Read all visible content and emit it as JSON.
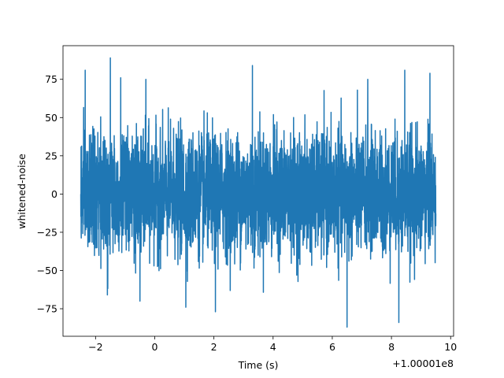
{
  "chart_data": {
    "type": "line",
    "xlabel": "Time (s)",
    "ylabel": "whitened-noise",
    "x_offset_label": "+1.00001e8",
    "xlim": [
      -3.1,
      10.1
    ],
    "ylim": [
      -93,
      97
    ],
    "x_ticks": [
      -2,
      0,
      2,
      4,
      6,
      8,
      10
    ],
    "y_ticks": [
      -75,
      -50,
      -25,
      0,
      25,
      50,
      75
    ],
    "x_tick_labels": [
      "−2",
      "0",
      "2",
      "4",
      "6",
      "8",
      "10"
    ],
    "y_tick_labels": [
      "−75",
      "−50",
      "−25",
      "0",
      "25",
      "50",
      "75"
    ],
    "grid": false,
    "series": [
      {
        "color": "#1f77b4",
        "x_range": [
          -2.5,
          9.5
        ],
        "typical_envelope": [
          -40,
          45
        ],
        "peaks": [
          {
            "x": -2.35,
            "y": 81
          },
          {
            "x": -1.5,
            "y": 89
          },
          {
            "x": -1.15,
            "y": 76
          },
          {
            "x": -0.3,
            "y": 75
          },
          {
            "x": 3.3,
            "y": 84
          },
          {
            "x": 7.2,
            "y": 75
          },
          {
            "x": 8.45,
            "y": 81
          },
          {
            "x": 9.3,
            "y": 79
          },
          {
            "x": -1.6,
            "y": -66
          },
          {
            "x": -0.5,
            "y": -70
          },
          {
            "x": 1.05,
            "y": -74
          },
          {
            "x": 2.05,
            "y": -77
          },
          {
            "x": 6.5,
            "y": -87
          },
          {
            "x": 8.25,
            "y": -84
          }
        ]
      }
    ]
  }
}
